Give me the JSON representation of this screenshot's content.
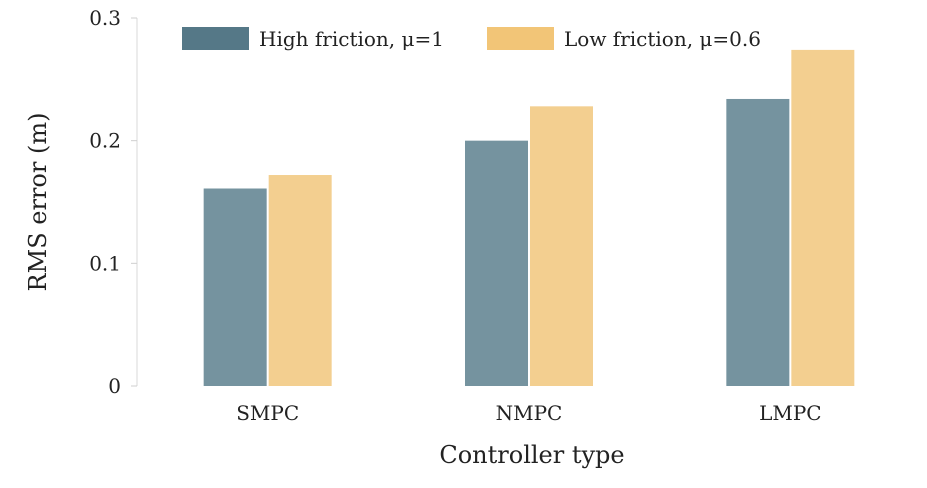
{
  "chart_data": {
    "type": "bar",
    "categories": [
      "SMPC",
      "NMPC",
      "LMPC"
    ],
    "series": [
      {
        "name": "High friction, μ=1",
        "values": [
          0.161,
          0.2,
          0.234
        ],
        "color": "#75939f",
        "legend_color": "#557887"
      },
      {
        "name": "Low friction, μ=0.6",
        "values": [
          0.172,
          0.228,
          0.274
        ],
        "color": "#f3cf90",
        "legend_color": "#f2c577"
      }
    ],
    "title": "",
    "xlabel": "Controller type",
    "ylabel": "RMS error (m)",
    "ylim": [
      0,
      0.3
    ],
    "yticks": [
      {
        "value": 0,
        "label": "0"
      },
      {
        "value": 0.1,
        "label": "0.1"
      },
      {
        "value": 0.2,
        "label": "0.2"
      },
      {
        "value": 0.3,
        "label": "0.3"
      }
    ],
    "grid": false,
    "legend_position": "top"
  }
}
